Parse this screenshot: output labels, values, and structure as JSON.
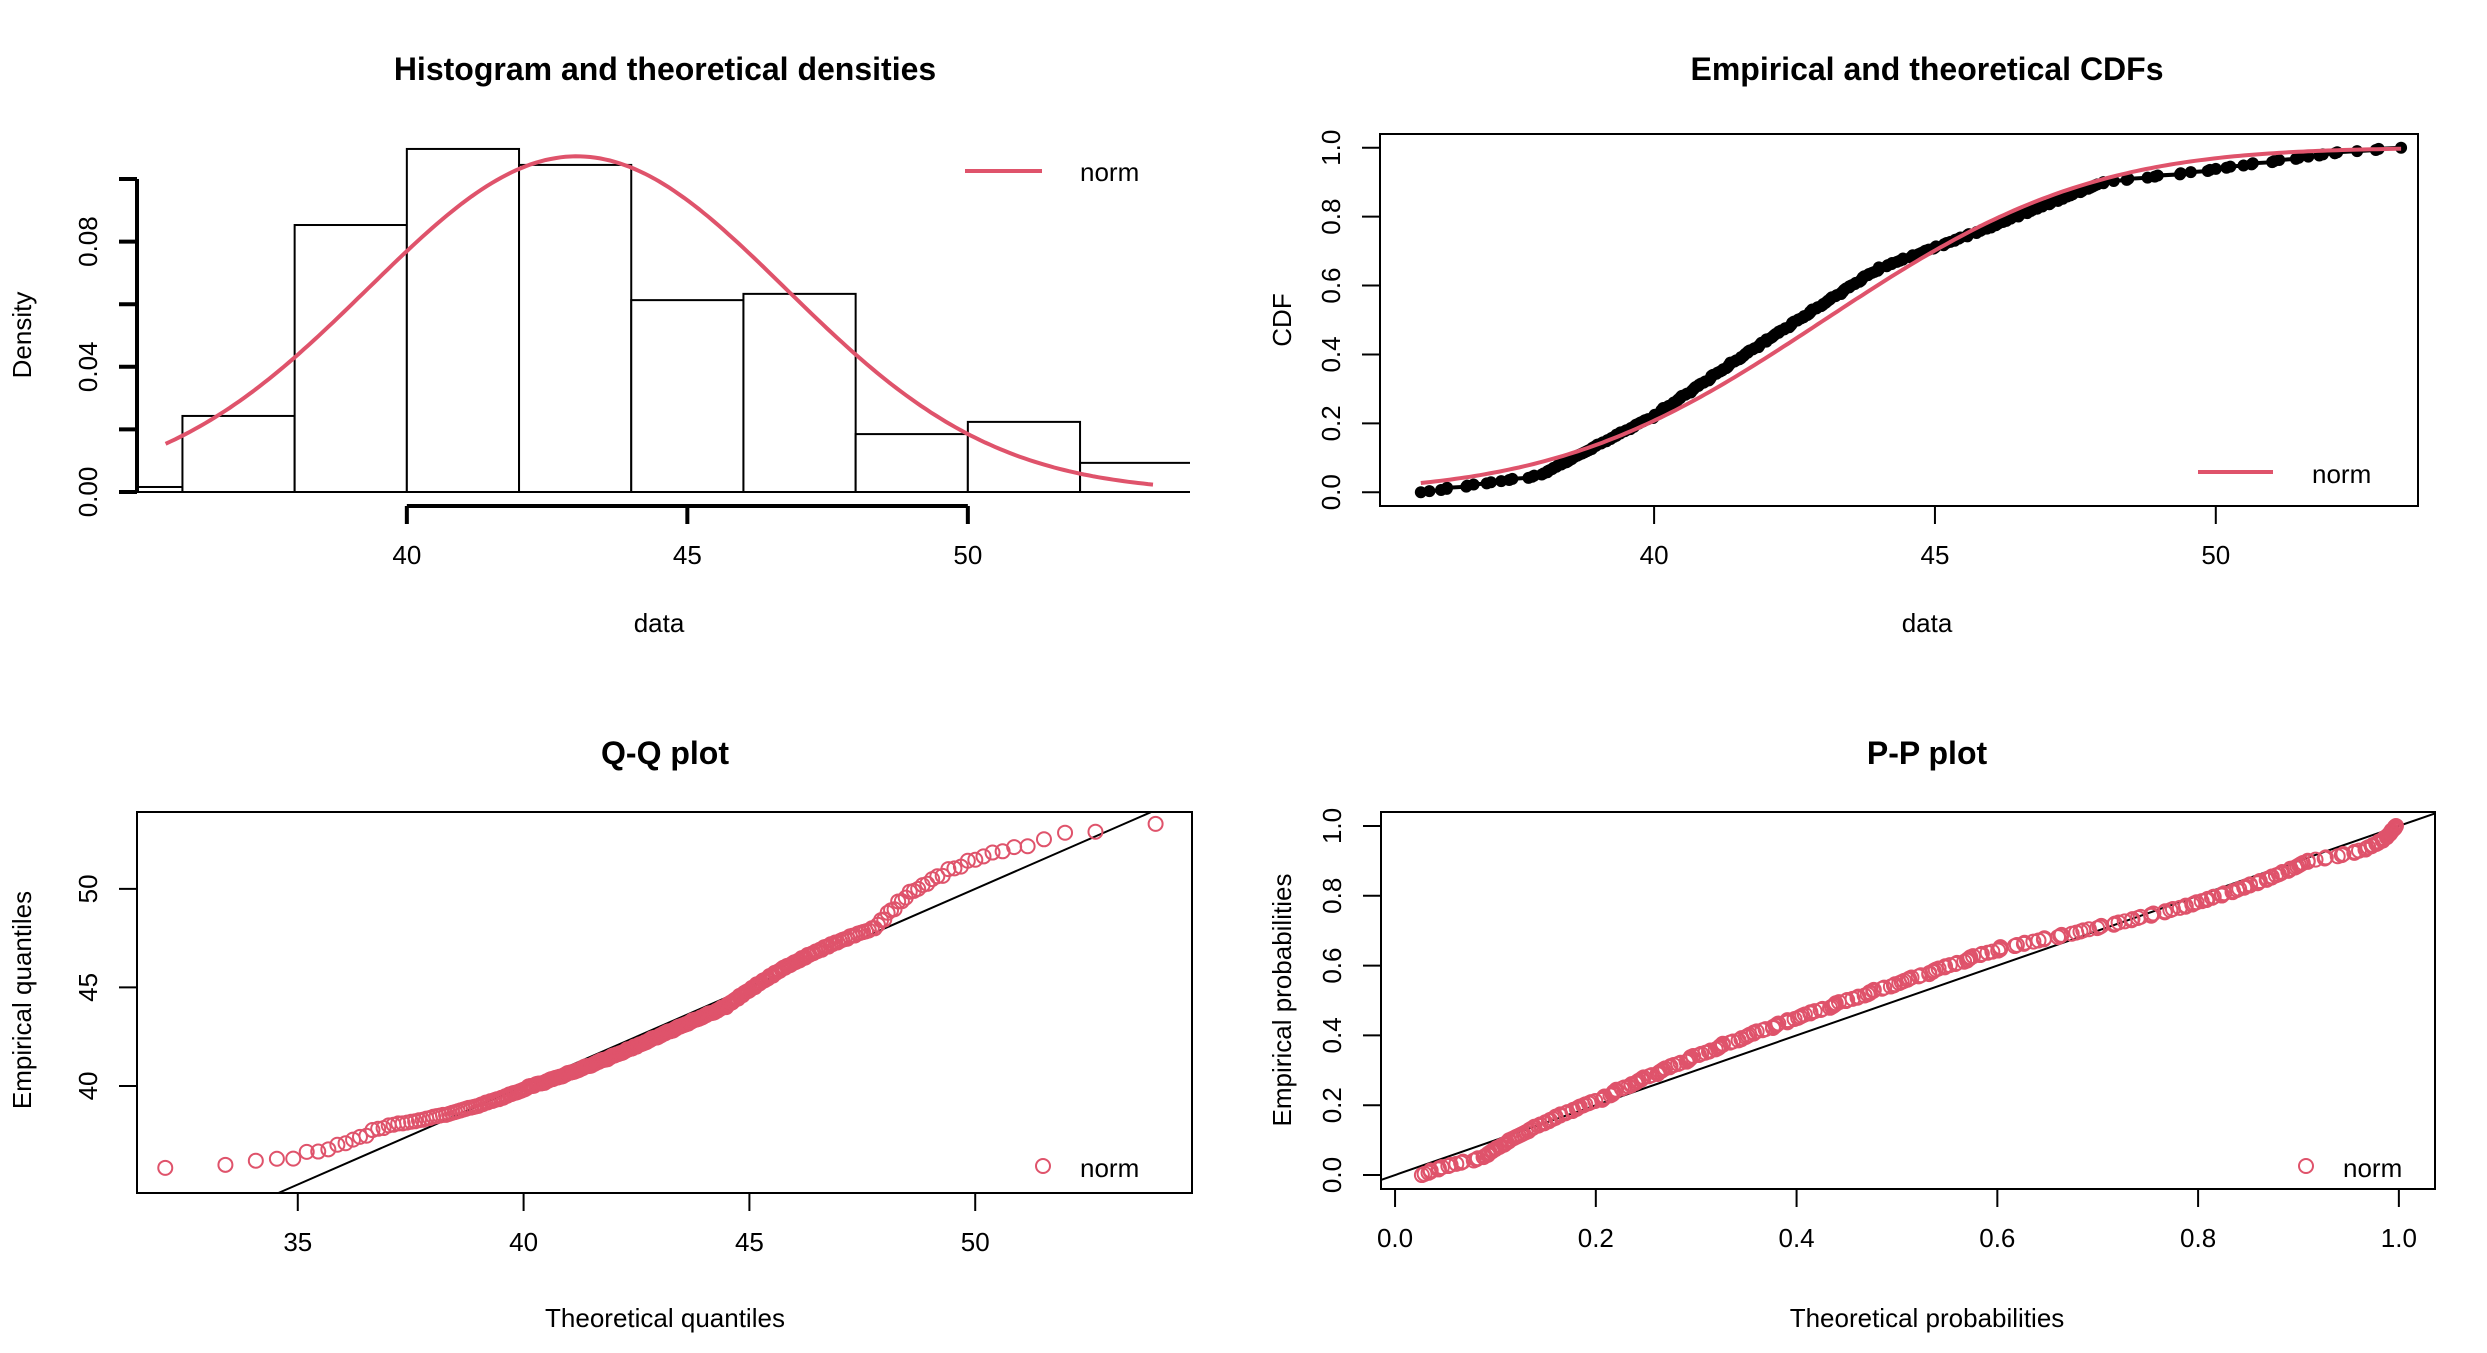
{
  "colors": {
    "fit": "#DF536B",
    "ink": "#000000",
    "background": "#FFFFFF"
  },
  "chart_data": [
    {
      "id": "hist",
      "type": "bar",
      "title": "Histogram and theoretical densities",
      "xlabel": "data",
      "ylabel": "Density",
      "xlim": [
        35.19,
        53.96
      ],
      "ylim": [
        0,
        0.1
      ],
      "xticks": [
        40,
        45,
        50
      ],
      "xtick_labels": [
        "40",
        "45",
        "50"
      ],
      "yticks": [
        0,
        0.02,
        0.04,
        0.06,
        0.08,
        0.1
      ],
      "ytick_labels": [
        "0.00",
        "",
        "0.04",
        "",
        "0.08",
        ""
      ],
      "bins": [
        {
          "from": 34,
          "to": 36,
          "count": 1,
          "density": 0.0016
        },
        {
          "from": 36,
          "to": 38,
          "count": 15,
          "density": 0.0243
        },
        {
          "from": 38,
          "to": 40,
          "count": 53,
          "density": 0.0853
        },
        {
          "from": 40,
          "to": 42,
          "count": 68,
          "density": 0.1096
        },
        {
          "from": 42,
          "to": 44,
          "count": 65,
          "density": 0.1045
        },
        {
          "from": 44,
          "to": 46,
          "count": 38,
          "density": 0.0613
        },
        {
          "from": 46,
          "to": 48,
          "count": 40,
          "density": 0.0633
        },
        {
          "from": 48,
          "to": 50,
          "count": 12,
          "density": 0.0185
        },
        {
          "from": 50,
          "to": 52,
          "count": 14,
          "density": 0.0224
        },
        {
          "from": 52,
          "to": 54,
          "count": 6,
          "density": 0.0093
        }
      ],
      "fit": {
        "distribution": "norm",
        "mean": 43.03,
        "sd": 3.72,
        "x_range": [
          35.7,
          53.3
        ]
      },
      "legend": {
        "entries": [
          "norm"
        ],
        "position": "top-right",
        "style": "line"
      }
    },
    {
      "id": "cdf",
      "type": "line",
      "title": "Empirical and theoretical CDFs",
      "xlabel": "data",
      "ylabel": "CDF",
      "xlim": [
        35.12,
        53.6
      ],
      "ylim": [
        -0.04,
        1.04
      ],
      "xticks": [
        40,
        45,
        50
      ],
      "xtick_labels": [
        "40",
        "45",
        "50"
      ],
      "yticks": [
        0,
        0.2,
        0.4,
        0.6,
        0.8,
        1.0
      ],
      "ytick_labels": [
        "0.0",
        "0.2",
        "0.4",
        "0.6",
        "0.8",
        "1.0"
      ],
      "series": [
        {
          "name": "empirical",
          "source": "hist.bins",
          "style": "step-points"
        },
        {
          "name": "norm",
          "distribution": "norm",
          "mean": 43.03,
          "sd": 3.72
        }
      ],
      "legend": {
        "entries": [
          "norm"
        ],
        "position": "bottom-right",
        "style": "line"
      }
    },
    {
      "id": "qq",
      "type": "scatter",
      "title": "Q-Q plot",
      "xlabel": "Theoretical quantiles",
      "ylabel": "Empirical quantiles",
      "xlim": [
        31.44,
        54.8
      ],
      "ylim": [
        34.57,
        53.9
      ],
      "xticks": [
        35,
        40,
        45,
        50
      ],
      "xtick_labels": [
        "35",
        "40",
        "45",
        "50"
      ],
      "yticks": [
        40,
        45,
        50
      ],
      "ytick_labels": [
        "40",
        "45",
        "50"
      ],
      "reference_line": {
        "intercept": 0,
        "slope": 1
      },
      "series": [
        {
          "name": "norm",
          "distribution": "norm",
          "mean": 43.03,
          "sd": 3.72,
          "source": "hist.bins"
        }
      ],
      "legend": {
        "entries": [
          "norm"
        ],
        "position": "bottom-right",
        "style": "point"
      }
    },
    {
      "id": "pp",
      "type": "scatter",
      "title": "P-P plot",
      "xlabel": "Theoretical probabilities",
      "ylabel": "Empirical probabilities",
      "xlim": [
        -0.014,
        1.036
      ],
      "ylim": [
        -0.04,
        1.04
      ],
      "xticks": [
        0,
        0.2,
        0.4,
        0.6,
        0.8,
        1.0
      ],
      "xtick_labels": [
        "0.0",
        "0.2",
        "0.4",
        "0.6",
        "0.8",
        "1.0"
      ],
      "yticks": [
        0,
        0.2,
        0.4,
        0.6,
        0.8,
        1.0
      ],
      "ytick_labels": [
        "0.0",
        "0.2",
        "0.4",
        "0.6",
        "0.8",
        "1.0"
      ],
      "reference_line": {
        "intercept": 0,
        "slope": 1
      },
      "series": [
        {
          "name": "norm",
          "distribution": "norm",
          "mean": 43.03,
          "sd": 3.72,
          "source": "hist.bins"
        }
      ],
      "legend": {
        "entries": [
          "norm"
        ],
        "position": "bottom-right",
        "style": "point"
      }
    }
  ]
}
